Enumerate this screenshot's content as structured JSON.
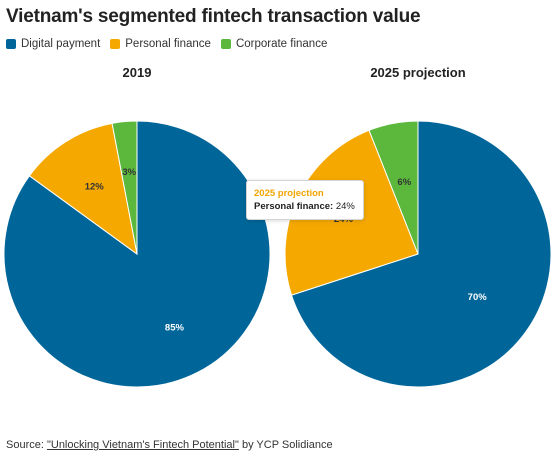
{
  "title": "Vietnam's segmented fintech transaction value",
  "legend": [
    {
      "label": "Digital payment",
      "color": "#006699"
    },
    {
      "label": "Personal finance",
      "color": "#f5a800"
    },
    {
      "label": "Corporate finance",
      "color": "#5cb83c"
    }
  ],
  "tooltip": {
    "title": "2025 projection",
    "series": "Personal finance:",
    "value": "24%"
  },
  "source": {
    "prefix": "Source: ",
    "link_text": "\"Unlocking Vietnam's Fintech Potential\"",
    "suffix": " by YCP Solidiance"
  },
  "chart_data": [
    {
      "type": "pie",
      "title": "2019",
      "categories": [
        "Digital payment",
        "Personal finance",
        "Corporate finance"
      ],
      "values": [
        85,
        12,
        3
      ],
      "labels": [
        "85%",
        "12%",
        "3%"
      ],
      "colors": [
        "#006699",
        "#f5a800",
        "#5cb83c"
      ],
      "start_angle_deg": 0,
      "direction": "clockwise-from-top, drawn counter-clockwise order: digital payment right side"
    },
    {
      "type": "pie",
      "title": "2025 projection",
      "categories": [
        "Digital payment",
        "Personal finance",
        "Corporate finance"
      ],
      "values": [
        70,
        24,
        6
      ],
      "labels": [
        "70%",
        "24%",
        "6%"
      ],
      "colors": [
        "#006699",
        "#f5a800",
        "#5cb83c"
      ],
      "highlighted": "Personal finance"
    }
  ]
}
